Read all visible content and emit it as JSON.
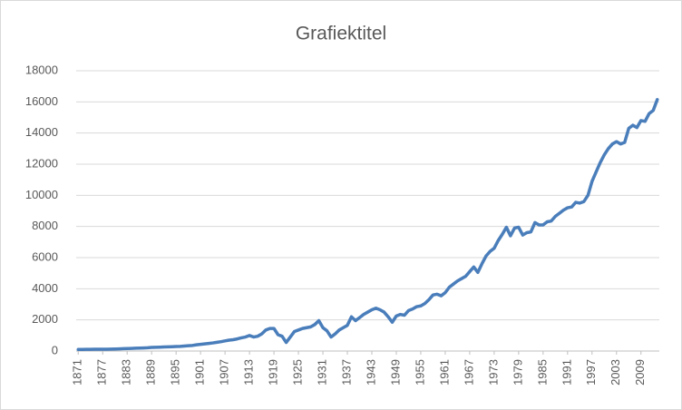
{
  "chart_data": {
    "type": "line",
    "title": "Grafiektitel",
    "x": [
      1871,
      1872,
      1873,
      1874,
      1875,
      1876,
      1877,
      1878,
      1879,
      1880,
      1881,
      1882,
      1883,
      1884,
      1885,
      1886,
      1887,
      1888,
      1889,
      1890,
      1891,
      1892,
      1893,
      1894,
      1895,
      1896,
      1897,
      1898,
      1899,
      1900,
      1901,
      1902,
      1903,
      1904,
      1905,
      1906,
      1907,
      1908,
      1909,
      1910,
      1911,
      1912,
      1913,
      1914,
      1915,
      1916,
      1917,
      1918,
      1919,
      1920,
      1921,
      1922,
      1923,
      1924,
      1925,
      1926,
      1927,
      1928,
      1929,
      1930,
      1931,
      1932,
      1933,
      1934,
      1935,
      1936,
      1937,
      1938,
      1939,
      1940,
      1941,
      1942,
      1943,
      1944,
      1945,
      1946,
      1947,
      1948,
      1949,
      1950,
      1951,
      1952,
      1953,
      1954,
      1955,
      1956,
      1957,
      1958,
      1959,
      1960,
      1961,
      1962,
      1963,
      1964,
      1965,
      1966,
      1967,
      1968,
      1969,
      1970,
      1971,
      1972,
      1973,
      1974,
      1975,
      1976,
      1977,
      1978,
      1979,
      1980,
      1981,
      1982,
      1983,
      1984,
      1985,
      1986,
      1987,
      1988,
      1989,
      1990,
      1991,
      1992,
      1993,
      1994,
      1995,
      1996,
      1997,
      1998,
      1999,
      2000,
      2001,
      2002,
      2003,
      2004,
      2005,
      2006,
      2007,
      2008,
      2009,
      2010,
      2011,
      2012,
      2013
    ],
    "values": [
      100,
      105,
      110,
      110,
      115,
      115,
      120,
      120,
      125,
      130,
      140,
      150,
      160,
      170,
      180,
      190,
      200,
      210,
      230,
      240,
      250,
      260,
      270,
      280,
      290,
      300,
      320,
      340,
      360,
      400,
      430,
      460,
      490,
      520,
      560,
      600,
      650,
      700,
      730,
      780,
      850,
      900,
      1000,
      900,
      950,
      1100,
      1350,
      1450,
      1450,
      1050,
      950,
      550,
      900,
      1250,
      1350,
      1450,
      1500,
      1550,
      1700,
      1950,
      1500,
      1300,
      900,
      1100,
      1350,
      1500,
      1650,
      2200,
      1950,
      2150,
      2350,
      2500,
      2650,
      2750,
      2650,
      2500,
      2200,
      1850,
      2250,
      2350,
      2300,
      2600,
      2700,
      2850,
      2900,
      3050,
      3300,
      3600,
      3650,
      3550,
      3750,
      4100,
      4300,
      4500,
      4650,
      4800,
      5100,
      5400,
      5050,
      5600,
      6100,
      6400,
      6600,
      7100,
      7500,
      7950,
      7400,
      7900,
      7950,
      7450,
      7600,
      7650,
      8250,
      8100,
      8100,
      8300,
      8350,
      8650,
      8850,
      9050,
      9200,
      9250,
      9550,
      9500,
      9600,
      10000,
      10900,
      11500,
      12100,
      12600,
      13000,
      13300,
      13450,
      13300,
      13400,
      14300,
      14500,
      14350,
      14800,
      14750,
      15250,
      15450,
      16150
    ],
    "color": "#4a7ebb",
    "xlim": [
      1870.5,
      2013.5
    ],
    "xticks": [
      1871,
      1877,
      1883,
      1889,
      1895,
      1901,
      1907,
      1913,
      1919,
      1925,
      1931,
      1937,
      1943,
      1949,
      1955,
      1961,
      1967,
      1973,
      1979,
      1985,
      1991,
      1997,
      2003,
      2009
    ],
    "ylim": [
      0,
      18000
    ],
    "yticks": [
      0,
      2000,
      4000,
      6000,
      8000,
      10000,
      12000,
      14000,
      16000,
      18000
    ],
    "grid": true
  }
}
